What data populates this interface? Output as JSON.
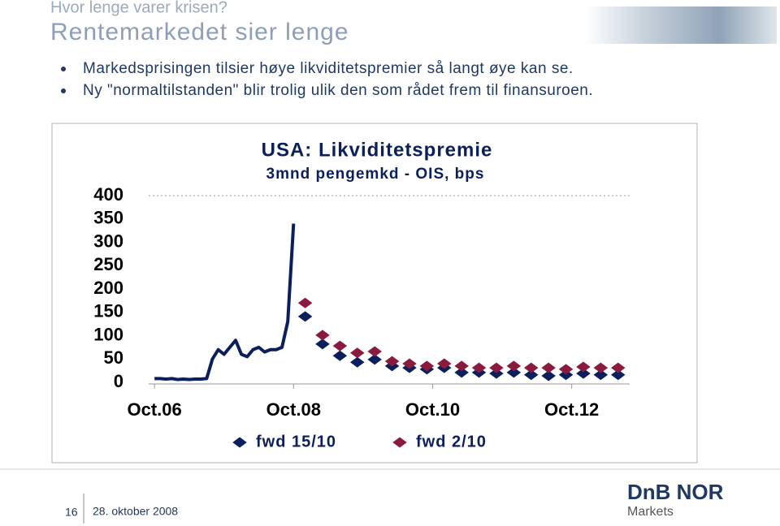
{
  "header": {
    "kicker": "Hvor lenge varer krisen?",
    "title": "Rentemarkedet sier lenge"
  },
  "bullets": [
    "Markedsprisingen tilsier høye likviditetspremier så langt øye kan se.",
    "Ny \"normaltilstanden\" blir trolig ulik den som rådet frem til finansuroen."
  ],
  "chart_data": {
    "type": "line",
    "title": "USA: Likviditetspremie",
    "subtitle": "3mnd pengemkd - OIS, bps",
    "xlim": [
      "2006-09",
      "2013-08"
    ],
    "xticks": [
      {
        "value": "2006-10",
        "label": "Oct.06"
      },
      {
        "value": "2008-10",
        "label": "Oct.08"
      },
      {
        "value": "2010-10",
        "label": "Oct.10"
      },
      {
        "value": "2012-10",
        "label": "Oct.12"
      }
    ],
    "ylim": [
      0,
      400
    ],
    "yticks": [
      0,
      50,
      100,
      150,
      200,
      250,
      300,
      350,
      400
    ],
    "series": [
      {
        "type": "line",
        "color": "#0b1f5c",
        "x": [
          "2006-10",
          "2006-11",
          "2006-12",
          "2007-01",
          "2007-02",
          "2007-03",
          "2007-04",
          "2007-05",
          "2007-06",
          "2007-07",
          "2007-08",
          "2007-09",
          "2007-10",
          "2007-11",
          "2007-12",
          "2008-01",
          "2008-02",
          "2008-03",
          "2008-04",
          "2008-05",
          "2008-06",
          "2008-07",
          "2008-08",
          "2008-09",
          "2008-10"
        ],
        "values": [
          8,
          8,
          7,
          8,
          6,
          7,
          6,
          7,
          7,
          8,
          50,
          70,
          60,
          75,
          90,
          60,
          55,
          70,
          75,
          65,
          70,
          70,
          75,
          130,
          340
        ]
      },
      {
        "name": "fwd 15/10",
        "type": "scatter",
        "color": "#0b1f5c",
        "x": [
          "2008-12",
          "2009-03",
          "2009-06",
          "2009-09",
          "2009-12",
          "2010-03",
          "2010-06",
          "2010-09",
          "2010-12",
          "2011-03",
          "2011-06",
          "2011-09",
          "2011-12",
          "2012-03",
          "2012-06",
          "2012-09",
          "2012-12",
          "2013-03",
          "2013-06"
        ],
        "values": [
          141,
          82,
          57,
          43,
          49,
          35,
          31,
          28,
          31,
          21,
          21,
          19,
          21,
          16,
          14,
          16,
          19,
          16,
          16
        ]
      },
      {
        "name": "fwd 2/10",
        "type": "scatter",
        "color": "#8b1a3f",
        "x": [
          "2008-12",
          "2009-03",
          "2009-06",
          "2009-09",
          "2009-12",
          "2010-03",
          "2010-06",
          "2010-09",
          "2010-12",
          "2011-03",
          "2011-06",
          "2011-09",
          "2011-12",
          "2012-03",
          "2012-06",
          "2012-09",
          "2012-12",
          "2013-03",
          "2013-06"
        ],
        "values": [
          170,
          101,
          78,
          63,
          66,
          45,
          40,
          35,
          40,
          35,
          31,
          31,
          35,
          31,
          31,
          28,
          33,
          31,
          31
        ]
      }
    ]
  },
  "footer": {
    "page": "16",
    "date": "28. oktober 2008"
  },
  "logo": {
    "brand": "DnB NOR",
    "sub": "Markets"
  }
}
